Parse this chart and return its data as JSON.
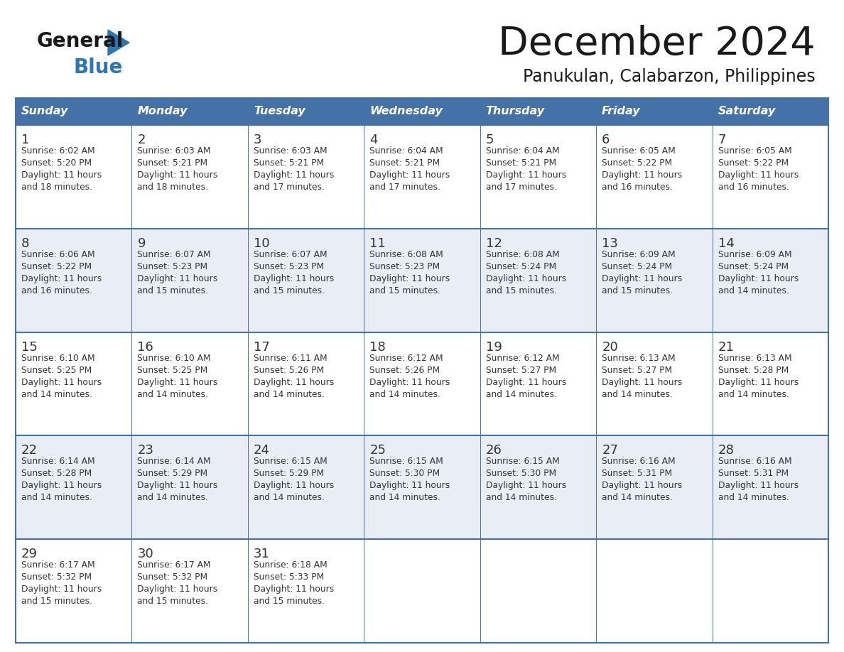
{
  "title": "December 2024",
  "subtitle": "Panukulan, Calabarzon, Philippines",
  "header_color": "#4472a8",
  "header_text_color": "#ffffff",
  "days_of_week": [
    "Sunday",
    "Monday",
    "Tuesday",
    "Wednesday",
    "Thursday",
    "Friday",
    "Saturday"
  ],
  "row_colors": [
    "#ffffff",
    "#e8eef4"
  ],
  "border_color": "#4472a8",
  "text_color": "#333333",
  "background_color": "#ffffff",
  "general_color": "#1a1a1a",
  "blue_logo_color": "#2e75b6",
  "calendar_data": [
    [
      {
        "day": "1",
        "sunrise": "6:02 AM",
        "sunset": "5:20 PM",
        "daylight_min": "18"
      },
      {
        "day": "2",
        "sunrise": "6:03 AM",
        "sunset": "5:21 PM",
        "daylight_min": "18"
      },
      {
        "day": "3",
        "sunrise": "6:03 AM",
        "sunset": "5:21 PM",
        "daylight_min": "17"
      },
      {
        "day": "4",
        "sunrise": "6:04 AM",
        "sunset": "5:21 PM",
        "daylight_min": "17"
      },
      {
        "day": "5",
        "sunrise": "6:04 AM",
        "sunset": "5:21 PM",
        "daylight_min": "17"
      },
      {
        "day": "6",
        "sunrise": "6:05 AM",
        "sunset": "5:22 PM",
        "daylight_min": "16"
      },
      {
        "day": "7",
        "sunrise": "6:05 AM",
        "sunset": "5:22 PM",
        "daylight_min": "16"
      }
    ],
    [
      {
        "day": "8",
        "sunrise": "6:06 AM",
        "sunset": "5:22 PM",
        "daylight_min": "16"
      },
      {
        "day": "9",
        "sunrise": "6:07 AM",
        "sunset": "5:23 PM",
        "daylight_min": "15"
      },
      {
        "day": "10",
        "sunrise": "6:07 AM",
        "sunset": "5:23 PM",
        "daylight_min": "15"
      },
      {
        "day": "11",
        "sunrise": "6:08 AM",
        "sunset": "5:23 PM",
        "daylight_min": "15"
      },
      {
        "day": "12",
        "sunrise": "6:08 AM",
        "sunset": "5:24 PM",
        "daylight_min": "15"
      },
      {
        "day": "13",
        "sunrise": "6:09 AM",
        "sunset": "5:24 PM",
        "daylight_min": "15"
      },
      {
        "day": "14",
        "sunrise": "6:09 AM",
        "sunset": "5:24 PM",
        "daylight_min": "14"
      }
    ],
    [
      {
        "day": "15",
        "sunrise": "6:10 AM",
        "sunset": "5:25 PM",
        "daylight_min": "14"
      },
      {
        "day": "16",
        "sunrise": "6:10 AM",
        "sunset": "5:25 PM",
        "daylight_min": "14"
      },
      {
        "day": "17",
        "sunrise": "6:11 AM",
        "sunset": "5:26 PM",
        "daylight_min": "14"
      },
      {
        "day": "18",
        "sunrise": "6:12 AM",
        "sunset": "5:26 PM",
        "daylight_min": "14"
      },
      {
        "day": "19",
        "sunrise": "6:12 AM",
        "sunset": "5:27 PM",
        "daylight_min": "14"
      },
      {
        "day": "20",
        "sunrise": "6:13 AM",
        "sunset": "5:27 PM",
        "daylight_min": "14"
      },
      {
        "day": "21",
        "sunrise": "6:13 AM",
        "sunset": "5:28 PM",
        "daylight_min": "14"
      }
    ],
    [
      {
        "day": "22",
        "sunrise": "6:14 AM",
        "sunset": "5:28 PM",
        "daylight_min": "14"
      },
      {
        "day": "23",
        "sunrise": "6:14 AM",
        "sunset": "5:29 PM",
        "daylight_min": "14"
      },
      {
        "day": "24",
        "sunrise": "6:15 AM",
        "sunset": "5:29 PM",
        "daylight_min": "14"
      },
      {
        "day": "25",
        "sunrise": "6:15 AM",
        "sunset": "5:30 PM",
        "daylight_min": "14"
      },
      {
        "day": "26",
        "sunrise": "6:15 AM",
        "sunset": "5:30 PM",
        "daylight_min": "14"
      },
      {
        "day": "27",
        "sunrise": "6:16 AM",
        "sunset": "5:31 PM",
        "daylight_min": "14"
      },
      {
        "day": "28",
        "sunrise": "6:16 AM",
        "sunset": "5:31 PM",
        "daylight_min": "14"
      }
    ],
    [
      {
        "day": "29",
        "sunrise": "6:17 AM",
        "sunset": "5:32 PM",
        "daylight_min": "15"
      },
      {
        "day": "30",
        "sunrise": "6:17 AM",
        "sunset": "5:32 PM",
        "daylight_min": "15"
      },
      {
        "day": "31",
        "sunrise": "6:18 AM",
        "sunset": "5:33 PM",
        "daylight_min": "15"
      },
      null,
      null,
      null,
      null
    ]
  ]
}
